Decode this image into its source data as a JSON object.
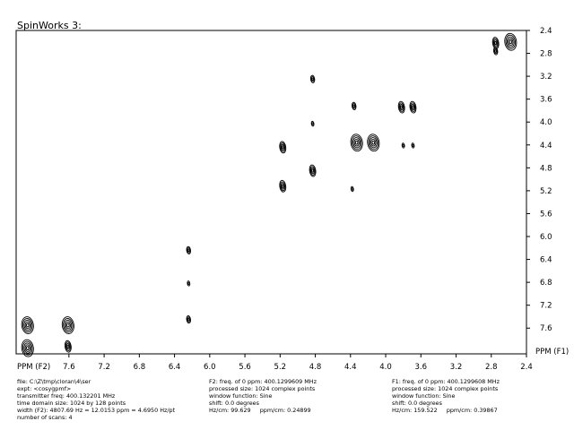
{
  "window": {
    "title": "SpinWorks 3:"
  },
  "colors": {
    "background": "#ffffff",
    "contour": "#000000",
    "frame": "#000000"
  },
  "chart_data": {
    "type": "contour",
    "xlabel": "PPM (F2)",
    "ylabel": "PPM (F1)",
    "xlim": [
      8.2,
      2.4
    ],
    "ylim": [
      2.4,
      8.05
    ],
    "x_reversed": true,
    "grid": false,
    "x_ticks": [
      "7.6",
      "7.2",
      "6.8",
      "6.4",
      "6.0",
      "5.6",
      "5.2",
      "4.8",
      "4.4",
      "4.0",
      "3.6",
      "3.2",
      "2.8",
      "2.4"
    ],
    "y_ticks": [
      "2.4",
      "2.8",
      "3.2",
      "3.6",
      "4.0",
      "4.4",
      "4.8",
      "5.2",
      "5.6",
      "6.0",
      "6.4",
      "6.8",
      "7.2",
      "7.6"
    ],
    "peaks": [
      {
        "x": 8.07,
        "y": 7.55,
        "size": "large"
      },
      {
        "x": 8.07,
        "y": 7.95,
        "size": "large"
      },
      {
        "x": 7.61,
        "y": 7.55,
        "size": "large"
      },
      {
        "x": 7.61,
        "y": 7.92,
        "size": "medium"
      },
      {
        "x": 6.24,
        "y": 6.24,
        "size": "small"
      },
      {
        "x": 6.24,
        "y": 6.82,
        "size": "tiny"
      },
      {
        "x": 6.24,
        "y": 7.45,
        "size": "small"
      },
      {
        "x": 5.17,
        "y": 4.44,
        "size": "medium"
      },
      {
        "x": 5.17,
        "y": 5.12,
        "size": "medium"
      },
      {
        "x": 4.83,
        "y": 3.25,
        "size": "small"
      },
      {
        "x": 4.83,
        "y": 4.03,
        "size": "tiny"
      },
      {
        "x": 4.83,
        "y": 4.85,
        "size": "medium"
      },
      {
        "x": 4.36,
        "y": 3.72,
        "size": "small"
      },
      {
        "x": 4.38,
        "y": 5.17,
        "size": "tiny"
      },
      {
        "x": 4.33,
        "y": 4.36,
        "size": "large"
      },
      {
        "x": 4.14,
        "y": 4.36,
        "size": "large"
      },
      {
        "x": 3.82,
        "y": 3.74,
        "size": "medium"
      },
      {
        "x": 3.69,
        "y": 3.74,
        "size": "medium"
      },
      {
        "x": 3.8,
        "y": 4.41,
        "size": "tiny"
      },
      {
        "x": 3.69,
        "y": 4.41,
        "size": "tiny"
      },
      {
        "x": 2.75,
        "y": 2.62,
        "size": "medium"
      },
      {
        "x": 2.75,
        "y": 2.76,
        "size": "small"
      },
      {
        "x": 2.58,
        "y": 2.6,
        "size": "large"
      }
    ]
  },
  "info": {
    "col1": [
      "file: C:\\Z\\tmp\\cloran\\4\\ser",
      "expt: <cosygpmf>",
      "transmitter freq: 400.132201 MHz",
      "time domain size: 1024 by 128 points",
      "width (F2): 4807.69 Hz = 12.0153 ppm = 4.6950 Hz/pt",
      "number of scans: 4"
    ],
    "col2": [
      "F2: freq. of 0 ppm: 400.1299609 MHz",
      "processed size: 1024 complex points",
      "window function: Sine",
      "shift: 0.0 degrees",
      "Hz/cm: 99.629     ppm/cm: 0.24899"
    ],
    "col3": [
      "F1: freq. of 0 ppm: 400.1299608 MHz",
      "processed size: 1024 complex points",
      "window function: Sine",
      "shift: 0.0 degrees",
      "Hz/cm: 159.522     ppm/cm: 0.39867"
    ]
  }
}
